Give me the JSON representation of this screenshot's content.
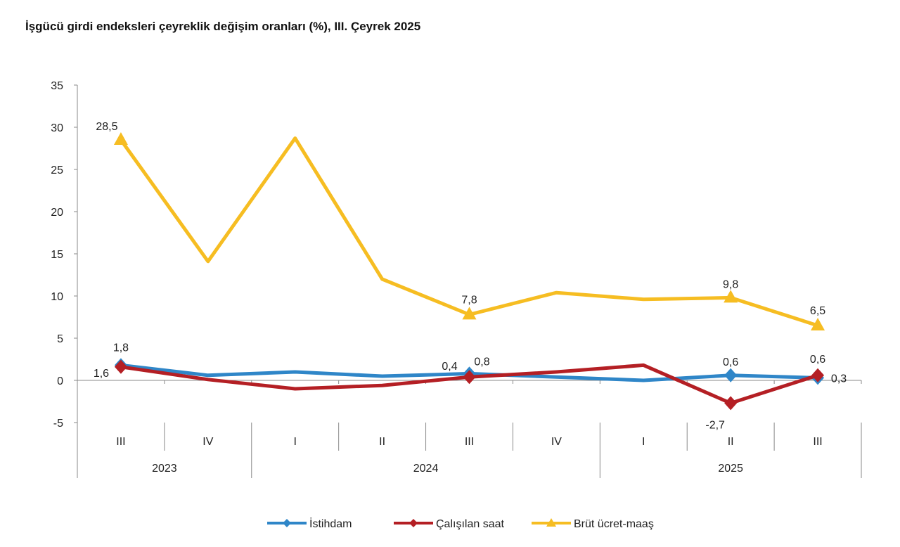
{
  "chart_data": {
    "type": "line",
    "title": "İşgücü girdi endeksleri çeyreklik değişim oranları (%), III. Çeyrek 2025",
    "categories": [
      "III",
      "IV",
      "I",
      "II",
      "III",
      "IV",
      "I",
      "II",
      "III"
    ],
    "groups": [
      {
        "label": "2023",
        "span": 2
      },
      {
        "label": "2024",
        "span": 4
      },
      {
        "label": "2025",
        "span": 3
      }
    ],
    "ylim": [
      -5,
      35
    ],
    "yticks": [
      -5,
      0,
      5,
      10,
      15,
      20,
      25,
      30,
      35
    ],
    "grid": false,
    "legend": "bottom",
    "series": [
      {
        "name": "İstihdam",
        "color": "#2f86c8",
        "marker": "diamond",
        "values": [
          1.8,
          0.6,
          1.0,
          0.5,
          0.8,
          0.4,
          0.0,
          0.6,
          0.3
        ],
        "labels": {
          "0": "1,8",
          "4": "0,8",
          "7": "0,6",
          "8": "0,3"
        }
      },
      {
        "name": "Çalışılan saat",
        "color": "#b41f24",
        "marker": "diamond",
        "values": [
          1.6,
          0.1,
          -1.0,
          -0.6,
          0.4,
          1.0,
          1.8,
          -2.7,
          0.6
        ],
        "labels": {
          "0": "1,6",
          "4": "0,4",
          "7": "-2,7",
          "8": "0,6"
        }
      },
      {
        "name": "Brüt ücret-maaş",
        "color": "#f6bd22",
        "marker": "triangle",
        "values": [
          28.5,
          14.1,
          28.7,
          12.0,
          7.8,
          10.4,
          9.6,
          9.8,
          6.5
        ],
        "labels": {
          "0": "28,5",
          "4": "7,8",
          "7": "9,8",
          "8": "6,5"
        }
      }
    ]
  }
}
